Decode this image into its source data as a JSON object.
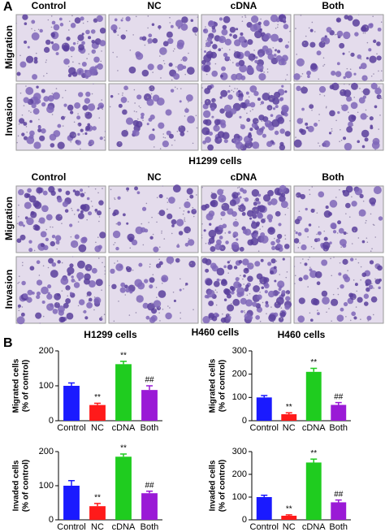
{
  "panel_a": {
    "label": "A",
    "columns": [
      "Control",
      "NC",
      "cDNA",
      "Both"
    ],
    "rows": [
      "Migration",
      "Invasion"
    ],
    "cell_lines": [
      "H1299 cells",
      "H460 cells"
    ]
  },
  "panel_b": {
    "label": "B"
  },
  "chart_data": [
    {
      "type": "bar",
      "title": "H1299 cells",
      "ylabel": [
        "Migrated cells",
        "(% of control)"
      ],
      "categories": [
        "Control",
        "NC",
        "cDNA",
        "Both"
      ],
      "values": [
        100,
        45,
        162,
        88
      ],
      "errors": [
        8,
        5,
        8,
        12
      ],
      "annotations": [
        null,
        "**",
        "**",
        "##"
      ],
      "colors": [
        "#1a1aff",
        "#ff1a1a",
        "#1fcc1f",
        "#9a1ad6"
      ],
      "ylim": [
        0,
        200
      ],
      "yticks": [
        0,
        100,
        200
      ]
    },
    {
      "type": "bar",
      "title": "H460 cells",
      "ylabel": [
        "Migrated cells",
        "(% of control)"
      ],
      "categories": [
        "Control",
        "NC",
        "cDNA",
        "Both"
      ],
      "values": [
        100,
        28,
        210,
        68
      ],
      "errors": [
        8,
        6,
        15,
        10
      ],
      "annotations": [
        null,
        "**",
        "**",
        "##"
      ],
      "colors": [
        "#1a1aff",
        "#ff1a1a",
        "#1fcc1f",
        "#9a1ad6"
      ],
      "ylim": [
        0,
        300
      ],
      "yticks": [
        0,
        100,
        200,
        300
      ]
    },
    {
      "type": "bar",
      "ylabel": [
        "Invaded cells",
        "(% of control)"
      ],
      "categories": [
        "Control",
        "NC",
        "cDNA",
        "Both"
      ],
      "values": [
        100,
        40,
        185,
        78
      ],
      "errors": [
        15,
        8,
        8,
        6
      ],
      "annotations": [
        null,
        "**",
        "**",
        "##"
      ],
      "colors": [
        "#1a1aff",
        "#ff1a1a",
        "#1fcc1f",
        "#9a1ad6"
      ],
      "ylim": [
        0,
        200
      ],
      "yticks": [
        0,
        100,
        200
      ]
    },
    {
      "type": "bar",
      "ylabel": [
        "Invaded cells",
        "(% of control)"
      ],
      "categories": [
        "Control",
        "NC",
        "cDNA",
        "Both"
      ],
      "values": [
        100,
        18,
        252,
        77
      ],
      "errors": [
        8,
        4,
        15,
        10
      ],
      "annotations": [
        null,
        "**",
        "**",
        "##"
      ],
      "colors": [
        "#1a1aff",
        "#ff1a1a",
        "#1fcc1f",
        "#9a1ad6"
      ],
      "ylim": [
        0,
        300
      ],
      "yticks": [
        0,
        100,
        200,
        300
      ]
    }
  ]
}
